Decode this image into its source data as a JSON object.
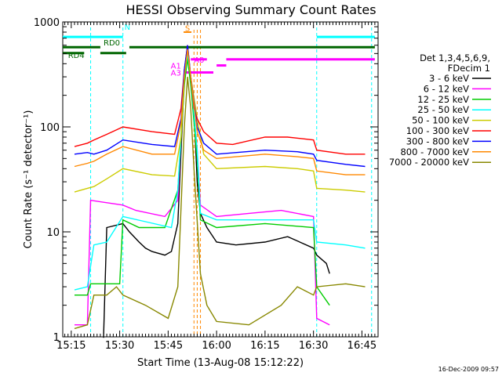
{
  "chart_data": {
    "type": "line",
    "title": "HESSI Observing Summary Count Rates",
    "xlabel": "Start Time (13-Aug-08 15:12:22)",
    "ylabel": "Count Rate (s⁻¹ detector⁻¹)",
    "yscale": "log",
    "ylim": [
      1,
      1000
    ],
    "xlim": [
      "15:12:22",
      "16:50:00"
    ],
    "x_tick_labels": [
      "15:15",
      "15:30",
      "15:45",
      "16:00",
      "16:15",
      "16:30",
      "16:45"
    ],
    "y_tick_labels": [
      "1",
      "10",
      "100",
      "1000"
    ],
    "grid": false,
    "legend_position": "right",
    "legend_header": [
      "Det 1,3,4,5,6,9,",
      "FDecim 1"
    ],
    "series": [
      {
        "name": "3 - 6 keV",
        "color": "#000000",
        "points": [
          [
            "15:25",
            0
          ],
          [
            "15:26",
            11
          ],
          [
            "15:31",
            12
          ],
          [
            "15:33",
            10
          ],
          [
            "15:36",
            8
          ],
          [
            "15:38",
            7
          ],
          [
            "15:40",
            6.5
          ],
          [
            "15:44",
            6
          ],
          [
            "15:46",
            6.5
          ],
          [
            "15:48",
            12
          ],
          [
            "15:50",
            300
          ],
          [
            "15:51",
            500
          ],
          [
            "15:52",
            300
          ],
          [
            "15:53",
            150
          ],
          [
            "15:54",
            30
          ],
          [
            "15:55",
            15
          ],
          [
            "15:57",
            11
          ],
          [
            "16:00",
            8
          ],
          [
            "16:06",
            7.5
          ],
          [
            "16:15",
            8
          ],
          [
            "16:22",
            9
          ],
          [
            "16:30",
            7
          ],
          [
            "16:31",
            6
          ],
          [
            "16:34",
            5
          ],
          [
            "16:35",
            4
          ]
        ]
      },
      {
        "name": "6 - 12 keV",
        "color": "#ff00ff",
        "points": [
          [
            "15:16",
            1.3
          ],
          [
            "15:20",
            1.3
          ],
          [
            "15:21",
            20
          ],
          [
            "15:31",
            18
          ],
          [
            "15:35",
            16
          ],
          [
            "15:44",
            14
          ],
          [
            "15:48",
            20
          ],
          [
            "15:50",
            300
          ],
          [
            "15:51",
            550
          ],
          [
            "15:52",
            300
          ],
          [
            "15:54",
            60
          ],
          [
            "15:55",
            18
          ],
          [
            "16:00",
            14
          ],
          [
            "16:10",
            15
          ],
          [
            "16:20",
            16
          ],
          [
            "16:30",
            14
          ],
          [
            "16:31",
            1.5
          ],
          [
            "16:35",
            1.3
          ]
        ]
      },
      {
        "name": "12 - 25 keV",
        "color": "#00cc00",
        "points": [
          [
            "15:16",
            2.5
          ],
          [
            "15:20",
            2.5
          ],
          [
            "15:21",
            3.2
          ],
          [
            "15:30",
            3.2
          ],
          [
            "15:31",
            13
          ],
          [
            "15:36",
            11
          ],
          [
            "15:44",
            11
          ],
          [
            "15:48",
            25
          ],
          [
            "15:50",
            250
          ],
          [
            "15:51",
            450
          ],
          [
            "15:52",
            250
          ],
          [
            "15:54",
            50
          ],
          [
            "15:55",
            13
          ],
          [
            "16:00",
            11
          ],
          [
            "16:15",
            12
          ],
          [
            "16:30",
            11
          ],
          [
            "16:31",
            3
          ],
          [
            "16:35",
            2
          ]
        ]
      },
      {
        "name": "25 - 50 keV",
        "color": "#00ffff",
        "points": [
          [
            "15:16",
            2.8
          ],
          [
            "15:20",
            3
          ],
          [
            "15:22",
            7.5
          ],
          [
            "15:26",
            8
          ],
          [
            "15:31",
            14
          ],
          [
            "15:38",
            12.5
          ],
          [
            "15:46",
            11
          ],
          [
            "15:48",
            25
          ],
          [
            "15:50",
            300
          ],
          [
            "15:51",
            500
          ],
          [
            "15:52",
            300
          ],
          [
            "15:54",
            60
          ],
          [
            "15:55",
            15
          ],
          [
            "16:00",
            13
          ],
          [
            "16:15",
            13
          ],
          [
            "16:30",
            13
          ],
          [
            "16:31",
            8
          ],
          [
            "16:40",
            7.5
          ],
          [
            "16:46",
            7
          ]
        ]
      },
      {
        "name": "50 - 100 keV",
        "color": "#cccc00",
        "points": [
          [
            "15:16",
            24
          ],
          [
            "15:20",
            26
          ],
          [
            "15:22",
            27
          ],
          [
            "15:26",
            32
          ],
          [
            "15:31",
            40
          ],
          [
            "15:40",
            35
          ],
          [
            "15:47",
            34
          ],
          [
            "15:49",
            80
          ],
          [
            "15:50",
            300
          ],
          [
            "15:51",
            550
          ],
          [
            "15:52",
            300
          ],
          [
            "15:54",
            120
          ],
          [
            "15:56",
            55
          ],
          [
            "16:00",
            40
          ],
          [
            "16:15",
            42
          ],
          [
            "16:25",
            40
          ],
          [
            "16:30",
            38
          ],
          [
            "16:31",
            26
          ],
          [
            "16:40",
            25
          ],
          [
            "16:46",
            24
          ]
        ]
      },
      {
        "name": "100 - 300 keV",
        "color": "#ff0000",
        "points": [
          [
            "15:16",
            65
          ],
          [
            "15:20",
            70
          ],
          [
            "15:22",
            75
          ],
          [
            "15:26",
            85
          ],
          [
            "15:31",
            100
          ],
          [
            "15:40",
            90
          ],
          [
            "15:47",
            85
          ],
          [
            "15:49",
            150
          ],
          [
            "15:50",
            350
          ],
          [
            "15:51",
            600
          ],
          [
            "15:52",
            300
          ],
          [
            "15:53",
            150
          ],
          [
            "15:54",
            120
          ],
          [
            "15:56",
            90
          ],
          [
            "16:00",
            70
          ],
          [
            "16:05",
            68
          ],
          [
            "16:15",
            80
          ],
          [
            "16:22",
            80
          ],
          [
            "16:30",
            75
          ],
          [
            "16:31",
            60
          ],
          [
            "16:40",
            55
          ],
          [
            "16:46",
            55
          ]
        ]
      },
      {
        "name": "300 - 800 keV",
        "color": "#0000ff",
        "points": [
          [
            "15:16",
            55
          ],
          [
            "15:20",
            57
          ],
          [
            "15:22",
            55
          ],
          [
            "15:26",
            60
          ],
          [
            "15:31",
            75
          ],
          [
            "15:40",
            68
          ],
          [
            "15:47",
            65
          ],
          [
            "15:49",
            120
          ],
          [
            "15:50",
            350
          ],
          [
            "15:51",
            600
          ],
          [
            "15:52",
            300
          ],
          [
            "15:54",
            100
          ],
          [
            "15:56",
            70
          ],
          [
            "16:00",
            55
          ],
          [
            "16:15",
            60
          ],
          [
            "16:25",
            58
          ],
          [
            "16:30",
            55
          ],
          [
            "16:31",
            48
          ],
          [
            "16:40",
            44
          ],
          [
            "16:46",
            42
          ]
        ]
      },
      {
        "name": "800 - 7000 keV",
        "color": "#ff8800",
        "points": [
          [
            "15:16",
            42
          ],
          [
            "15:20",
            45
          ],
          [
            "15:22",
            47
          ],
          [
            "15:26",
            55
          ],
          [
            "15:31",
            65
          ],
          [
            "15:40",
            55
          ],
          [
            "15:47",
            55
          ],
          [
            "15:49",
            110
          ],
          [
            "15:50",
            300
          ],
          [
            "15:51",
            550
          ],
          [
            "15:52",
            300
          ],
          [
            "15:54",
            90
          ],
          [
            "15:56",
            60
          ],
          [
            "16:00",
            50
          ],
          [
            "16:15",
            55
          ],
          [
            "16:25",
            52
          ],
          [
            "16:30",
            50
          ],
          [
            "16:31",
            38
          ],
          [
            "16:40",
            35
          ],
          [
            "16:46",
            35
          ]
        ]
      },
      {
        "name": "7000 - 20000 keV",
        "color": "#888800",
        "points": [
          [
            "15:16",
            1.2
          ],
          [
            "15:20",
            1.3
          ],
          [
            "15:22",
            2.5
          ],
          [
            "15:26",
            2.5
          ],
          [
            "15:29",
            3
          ],
          [
            "15:31",
            2.5
          ],
          [
            "15:38",
            2
          ],
          [
            "15:45",
            1.5
          ],
          [
            "15:48",
            3
          ],
          [
            "15:50",
            100
          ],
          [
            "15:51",
            300
          ],
          [
            "15:52",
            150
          ],
          [
            "15:53",
            40
          ],
          [
            "15:55",
            4
          ],
          [
            "15:57",
            2
          ],
          [
            "16:00",
            1.4
          ],
          [
            "16:10",
            1.3
          ],
          [
            "16:20",
            2
          ],
          [
            "16:25",
            3
          ],
          [
            "16:30",
            2.5
          ],
          [
            "16:31",
            3
          ],
          [
            "16:40",
            3.2
          ],
          [
            "16:46",
            3
          ]
        ]
      }
    ],
    "annotations": {
      "labels": [
        {
          "text": "N",
          "color": "#00ffff"
        },
        {
          "text": "RD0",
          "color": "#006600"
        },
        {
          "text": "RD4",
          "color": "#006600"
        },
        {
          "text": "S",
          "color": "#ff8800"
        },
        {
          "text": "A0",
          "color": "#ff00ff"
        },
        {
          "text": "A1",
          "color": "#ff00ff"
        },
        {
          "text": "A3",
          "color": "#ff00ff"
        }
      ],
      "state_bars": [
        {
          "label": "N",
          "color": "#00ffff",
          "level": 720,
          "segments": [
            [
              "15:12:22",
              "15:31"
            ],
            [
              "16:31",
              "16:49"
            ]
          ]
        },
        {
          "label": "RD0",
          "color": "#006600",
          "level": 575,
          "segments": [
            [
              "15:12:22",
              "15:24"
            ],
            [
              "15:33",
              "16:49"
            ]
          ]
        },
        {
          "label": "RD4",
          "color": "#006600",
          "level": 505,
          "segments": [
            [
              "15:12:22",
              "15:19"
            ],
            [
              "15:24",
              "15:32"
            ]
          ]
        },
        {
          "label": "A0",
          "color": "#ff00ff",
          "level": 440,
          "segments": [
            [
              "15:52",
              "15:57"
            ],
            [
              "16:03",
              "16:49"
            ]
          ]
        },
        {
          "label": "A1",
          "color": "#ff00ff",
          "level": 385,
          "segments": [
            [
              "16:00",
              "16:03"
            ]
          ]
        },
        {
          "label": "A3",
          "color": "#ff00ff",
          "level": 330,
          "segments": [
            [
              "15:50",
              "15:59"
            ]
          ]
        }
      ],
      "vlines_cyan": [
        "15:21",
        "15:31",
        "16:31",
        "16:48"
      ],
      "vlines_orange": [
        "15:53",
        "15:54",
        "15:55"
      ]
    }
  },
  "timestamp": "16-Dec-2009 09:57"
}
